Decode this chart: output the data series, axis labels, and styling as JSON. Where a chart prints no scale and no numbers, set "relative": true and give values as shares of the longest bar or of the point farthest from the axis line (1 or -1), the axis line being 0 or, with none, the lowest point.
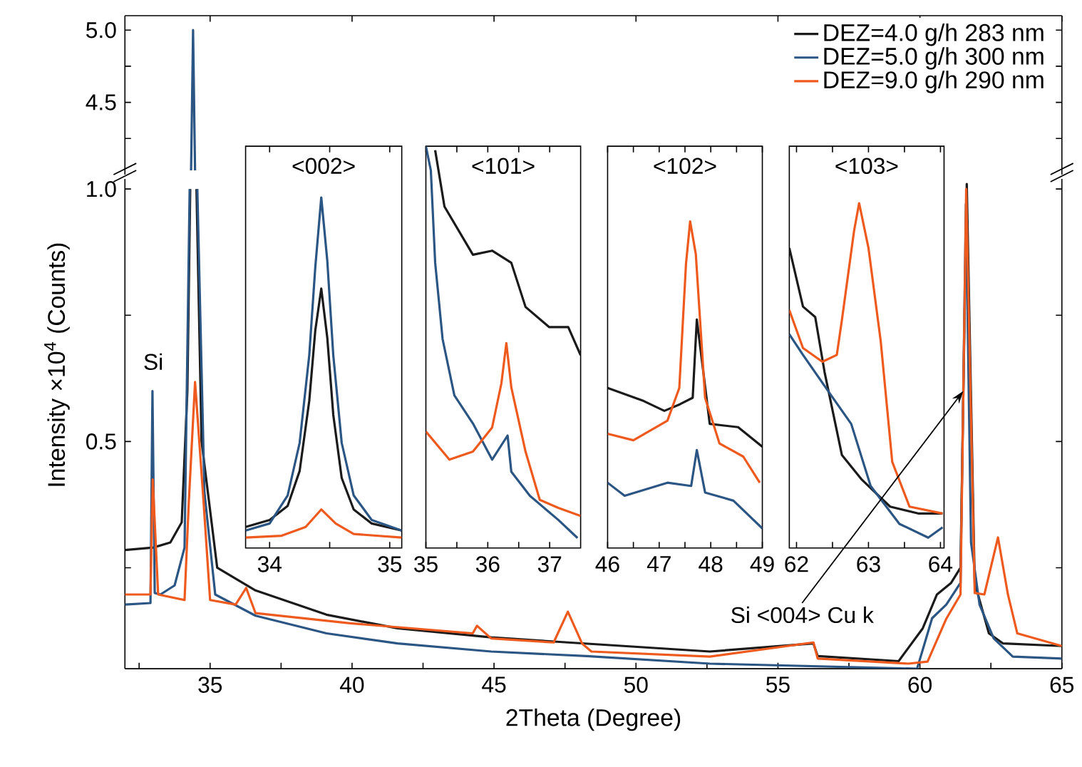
{
  "chart_data": [
    {
      "type": "line",
      "xlim": [
        32,
        65
      ],
      "ylim": [
        4.0,
        5.1
      ],
      "xticks": [
        35,
        40,
        45,
        50,
        55,
        60,
        65
      ],
      "yticks": [
        {
          "value": 4.25,
          "label": null
        },
        4.5,
        {
          "value": 4.75,
          "label": null
        },
        {
          "value": 5,
          "label": "5.0"
        }
      ],
      "tick_labels": "y",
      "series": [
        {
          "color": "#2b5583",
          "x": [
            34.33,
            34.4,
            34.47
          ],
          "values": [
            4.03,
            5.0,
            4.03
          ]
        }
      ]
    },
    {
      "type": "line",
      "xlabel": "2Theta (Degree)",
      "ylabel": "Intensity ×10$^{4}$ (Counts)",
      "xlim": [
        32,
        65
      ],
      "ylim": [
        0.05,
        1.02
      ],
      "xticks": [
        {
          "value": 32.5,
          "label": null
        },
        35,
        {
          "value": 37.5,
          "label": null
        },
        40,
        {
          "value": 42.5,
          "label": null
        },
        45,
        {
          "value": 47.5,
          "label": null
        },
        50,
        {
          "value": 52.5,
          "label": null
        },
        55,
        {
          "value": 57.5,
          "label": null
        },
        60,
        {
          "value": 62.5,
          "label": null
        },
        65
      ],
      "yticks": [
        {
          "value": 0.25,
          "label": null
        },
        0.5,
        {
          "value": 0.75,
          "label": null
        },
        {
          "value": 1,
          "label": "1.0"
        }
      ],
      "legend": "top right",
      "annotations": [
        {
          "text": "Si",
          "x": 33.0,
          "y": 0.6
        },
        {
          "text": "Si <004> Cu k",
          "x": 61.53,
          "y": 0.6
        }
      ],
      "series": [
        {
          "name": "DEZ=4.0 g/h 283 nm",
          "color": "#1a1a1a",
          "x": [
            32,
            33.0,
            33.6,
            34.0,
            34.2,
            34.3,
            34.4,
            34.52,
            34.7,
            35.25,
            36.6,
            39.1,
            41.6,
            44.9,
            47.6,
            52.6,
            56.25,
            56.4,
            59.25,
            60.1,
            60.6,
            61.1,
            61.43,
            61.65,
            61.93,
            62.43,
            62.93,
            65
          ],
          "values": [
            0.285,
            0.29,
            0.3,
            0.34,
            0.6,
            1.0,
            null,
            1.0,
            0.5,
            0.25,
            0.205,
            0.157,
            0.13,
            0.112,
            0.102,
            0.084,
            0.1,
            0.075,
            0.065,
            0.13,
            0.197,
            0.22,
            0.25,
            1.01,
            0.22,
            0.12,
            0.1,
            0.095
          ]
        },
        {
          "name": "DEZ=5.0 g/h 300 nm",
          "color": "#2b5583",
          "x": [
            32,
            32.9,
            32.97,
            33.05,
            33.25,
            33.75,
            34.1,
            34.28,
            34.4,
            34.55,
            34.8,
            35.18,
            36.6,
            39.1,
            41.6,
            44.9,
            48.25,
            52.6,
            59.9,
            60.43,
            60.93,
            61.43,
            61.62,
            61.8,
            62.1,
            62.6,
            63.27,
            65
          ],
          "values": [
            0.177,
            0.18,
            0.6,
            0.2,
            0.197,
            0.215,
            0.29,
            1.0,
            null,
            1.0,
            0.4,
            0.197,
            0.155,
            0.12,
            0.1,
            0.084,
            0.075,
            0.06,
            0.05,
            0.15,
            0.177,
            0.22,
            0.97,
            0.3,
            0.177,
            0.11,
            0.074,
            0.07
          ]
        },
        {
          "name": "DEZ=9.0 g/h 290 nm",
          "color": "#ee5a1e",
          "x": [
            32,
            32.9,
            32.98,
            33.17,
            34.1,
            34.25,
            34.47,
            34.77,
            35.0,
            35.9,
            36.27,
            36.6,
            39.93,
            44.25,
            44.4,
            44.9,
            47.1,
            47.6,
            48.1,
            48.43,
            52.6,
            56.25,
            56.4,
            59.6,
            60.27,
            60.93,
            61.43,
            61.63,
            61.93,
            62.27,
            62.75,
            63.1,
            63.43,
            65
          ],
          "values": [
            0.197,
            0.197,
            0.425,
            0.197,
            0.186,
            0.38,
            0.618,
            0.38,
            0.186,
            0.177,
            0.21,
            0.16,
            0.14,
            0.12,
            0.135,
            0.11,
            0.102,
            0.163,
            0.1,
            0.084,
            0.074,
            0.102,
            0.07,
            0.06,
            0.064,
            0.149,
            0.197,
            1.0,
            0.2,
            0.197,
            0.31,
            0.197,
            0.12,
            0.095
          ]
        }
      ]
    },
    {
      "type": "line",
      "title": "<002>",
      "relative": true,
      "xlim": [
        33.8,
        35.1
      ],
      "xticks": [
        34,
        {
          "value": 34.5,
          "label": null
        },
        35
      ],
      "series": [
        {
          "color": "#1a1a1a",
          "x": [
            33.8,
            34.0,
            34.15,
            34.25,
            34.33,
            34.38,
            34.43,
            34.48,
            34.53,
            34.6,
            34.7,
            34.85,
            35.1
          ],
          "values": [
            0.06,
            0.08,
            0.12,
            0.22,
            0.42,
            0.62,
            0.74,
            0.6,
            0.38,
            0.2,
            0.11,
            0.07,
            0.05
          ]
        },
        {
          "color": "#2b5583",
          "x": [
            33.8,
            34.0,
            34.15,
            34.25,
            34.33,
            34.38,
            34.43,
            34.48,
            34.53,
            34.6,
            34.7,
            34.85,
            35.1
          ],
          "values": [
            0.05,
            0.07,
            0.15,
            0.3,
            0.55,
            0.8,
            1.0,
            0.82,
            0.55,
            0.3,
            0.15,
            0.08,
            0.05
          ]
        },
        {
          "color": "#ee5a1e",
          "x": [
            33.8,
            34.1,
            34.3,
            34.43,
            34.55,
            34.7,
            35.1
          ],
          "values": [
            0.03,
            0.035,
            0.06,
            0.11,
            0.07,
            0.04,
            0.03
          ]
        }
      ]
    },
    {
      "type": "line",
      "title": "<101>",
      "relative": true,
      "xlim": [
        35,
        37.5
      ],
      "xticks": [
        35,
        {
          "value": 35.5,
          "label": null
        },
        36,
        {
          "value": 36.5,
          "label": null
        },
        37
      ],
      "series": [
        {
          "color": "#1a1a1a",
          "x": [
            35.15,
            35.3,
            35.76,
            36.07,
            36.38,
            36.61,
            36.99,
            37.3,
            37.5
          ],
          "values": [
            0.99,
            0.85,
            0.73,
            0.74,
            0.71,
            0.6,
            0.55,
            0.55,
            0.48
          ]
        },
        {
          "color": "#2b5583",
          "x": [
            35.0,
            35.08,
            35.15,
            35.27,
            35.46,
            35.76,
            36.07,
            36.32,
            36.38,
            36.68,
            37.14,
            37.45
          ],
          "values": [
            1.0,
            0.94,
            0.71,
            0.52,
            0.38,
            0.31,
            0.22,
            0.28,
            0.19,
            0.13,
            0.07,
            0.025
          ]
        },
        {
          "color": "#ee5a1e",
          "x": [
            35.0,
            35.38,
            35.76,
            36.07,
            36.22,
            36.3,
            36.38,
            36.61,
            36.84,
            37.14,
            37.5
          ],
          "values": [
            0.29,
            0.22,
            0.24,
            0.3,
            0.41,
            0.51,
            0.4,
            0.24,
            0.12,
            0.1,
            0.08
          ]
        }
      ]
    },
    {
      "type": "line",
      "title": "<102>",
      "relative": true,
      "xlim": [
        46,
        49
      ],
      "xticks": [
        46,
        {
          "value": 46.5,
          "label": null
        },
        47,
        {
          "value": 47.5,
          "label": null
        },
        48,
        {
          "value": 48.5,
          "label": null
        },
        49
      ],
      "series": [
        {
          "color": "#1a1a1a",
          "x": [
            46.0,
            46.7,
            47.1,
            47.4,
            47.65,
            47.73,
            47.98,
            48.53,
            49.0
          ],
          "values": [
            0.49,
            0.45,
            0.42,
            0.44,
            0.46,
            0.7,
            0.38,
            0.37,
            0.31
          ]
        },
        {
          "color": "#2b5583",
          "x": [
            46.0,
            46.33,
            47.16,
            47.62,
            47.73,
            47.89,
            48.44,
            49.0
          ],
          "values": [
            0.2,
            0.16,
            0.2,
            0.19,
            0.3,
            0.17,
            0.145,
            0.06
          ]
        },
        {
          "color": "#ee5a1e",
          "x": [
            46.0,
            46.5,
            47.16,
            47.39,
            47.52,
            47.6,
            47.71,
            47.89,
            48.17,
            48.63,
            48.95
          ],
          "values": [
            0.35,
            0.33,
            0.39,
            0.49,
            0.87,
            1.0,
            0.9,
            0.46,
            0.32,
            0.28,
            0.2
          ]
        }
      ]
    },
    {
      "type": "line",
      "title": "<103>",
      "relative": true,
      "xlim": [
        61.9,
        64.05
      ],
      "xticks": [
        62,
        {
          "value": 62.5,
          "label": null
        },
        63,
        {
          "value": 63.5,
          "label": null
        },
        64
      ],
      "series": [
        {
          "color": "#1a1a1a",
          "x": [
            61.9,
            62.09,
            62.26,
            62.39,
            62.63,
            62.9,
            63.3,
            63.7,
            64.03
          ],
          "values": [
            0.87,
            0.7,
            0.67,
            0.51,
            0.27,
            0.2,
            0.12,
            0.1,
            0.1
          ]
        },
        {
          "color": "#2b5583",
          "x": [
            61.9,
            62.09,
            62.49,
            62.76,
            63.03,
            63.43,
            63.83,
            64.03
          ],
          "values": [
            0.62,
            0.56,
            0.44,
            0.36,
            0.18,
            0.07,
            0.03,
            0.06
          ]
        },
        {
          "color": "#ee5a1e",
          "x": [
            61.9,
            62.09,
            62.36,
            62.56,
            62.63,
            62.8,
            62.87,
            63.0,
            63.17,
            63.33,
            63.57,
            64.03
          ],
          "values": [
            0.69,
            0.58,
            0.54,
            0.56,
            0.66,
            0.92,
            1.0,
            0.87,
            0.6,
            0.25,
            0.12,
            0.1
          ]
        }
      ]
    }
  ]
}
